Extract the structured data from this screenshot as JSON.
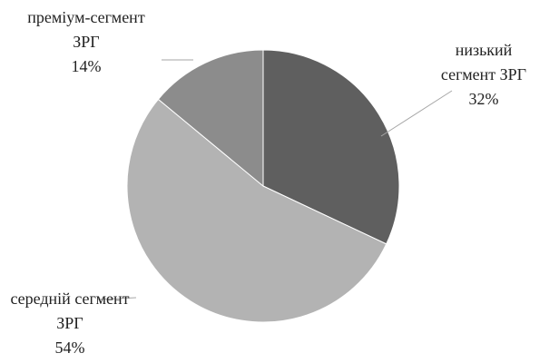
{
  "chart_data": {
    "type": "pie",
    "categories": [
      "низький сегмент ЗРГ",
      "середній сегмент ЗРГ",
      "преміум-сегмент ЗРГ"
    ],
    "values": [
      32,
      54,
      14
    ],
    "value_labels": [
      "32%",
      "54%",
      "14%"
    ],
    "colors": [
      "#5f5f5f",
      "#b3b3b3",
      "#8c8c8c"
    ]
  }
}
